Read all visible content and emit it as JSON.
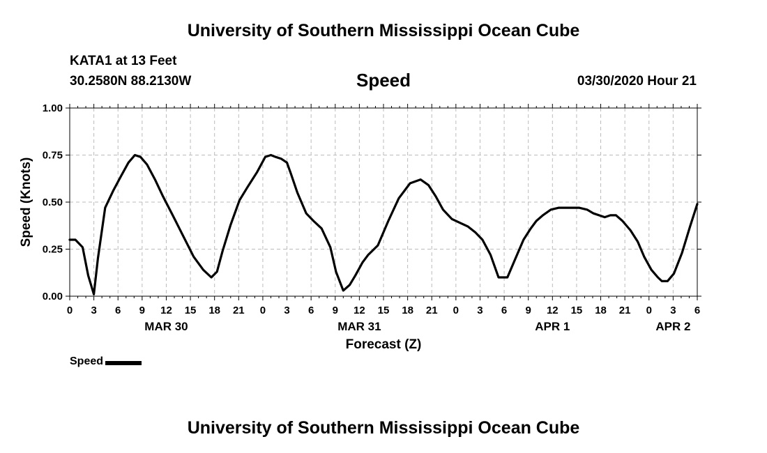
{
  "header": {
    "title_top": "University of Southern Mississippi Ocean Cube",
    "station": "KATA1 at 13 Feet",
    "coords": "30.2580N 88.2130W",
    "variable": "Speed",
    "datetime": "03/30/2020 Hour 21"
  },
  "footer": {
    "title_bottom": "University of Southern Mississippi Ocean Cube"
  },
  "legend": {
    "label": "Speed"
  },
  "chart_data": {
    "type": "line",
    "title": "Speed",
    "xlabel": "Forecast (Z)",
    "ylabel": "Speed (Knots)",
    "xlim": [
      0,
      78
    ],
    "ylim": [
      0,
      1
    ],
    "yticks": [
      0,
      0.25,
      0.5,
      0.75,
      1
    ],
    "ytick_labels": [
      "0.00",
      "0.25",
      "0.50",
      "0.75",
      "1.00"
    ],
    "xticks": [
      0,
      3,
      6,
      9,
      12,
      15,
      18,
      21,
      24,
      27,
      30,
      33,
      36,
      39,
      42,
      45,
      48,
      51,
      54,
      57,
      60,
      63,
      66,
      69,
      72,
      75,
      78
    ],
    "xtick_labels": [
      "0",
      "3",
      "6",
      "9",
      "12",
      "15",
      "18",
      "21",
      "0",
      "3",
      "6",
      "9",
      "12",
      "15",
      "18",
      "21",
      "0",
      "3",
      "6",
      "9",
      "12",
      "15",
      "18",
      "21",
      "0",
      "3",
      "6"
    ],
    "date_labels": [
      {
        "label": "MAR 30",
        "x": 12
      },
      {
        "label": "MAR 31",
        "x": 36
      },
      {
        "label": "APR 1",
        "x": 60
      },
      {
        "label": "APR 2",
        "x": 75
      }
    ],
    "grid": true,
    "legend_position": "bottom-left",
    "series": [
      {
        "name": "Speed",
        "color": "#000000",
        "x": [
          0,
          0.7,
          1.6,
          2.3,
          3,
          3.5,
          4.4,
          5.4,
          6.4,
          7.3,
          8.1,
          8.8,
          9.6,
          10.6,
          11.6,
          12.8,
          14.1,
          15.4,
          16.6,
          17.6,
          18.3,
          19,
          20,
          21.1,
          22.1,
          23.3,
          24.3,
          25,
          25.6,
          26.3,
          27,
          27.5,
          28.3,
          29.4,
          30.3,
          31.3,
          32.4,
          33.1,
          34,
          34.8,
          35.5,
          36.4,
          37.1,
          38.3,
          39.6,
          40.9,
          42.3,
          43.6,
          44.6,
          45.5,
          46.4,
          47.5,
          48.5,
          49.5,
          50.4,
          51.3,
          52.3,
          53.3,
          54.4,
          55.4,
          56.4,
          57.3,
          58,
          58.8,
          59.8,
          60.8,
          61.6,
          62.4,
          63.3,
          64.3,
          65.1,
          66.5,
          67.2,
          67.9,
          68.7,
          69.7,
          70.6,
          71.4,
          72.3,
          73.1,
          73.6,
          74.3,
          75.1,
          76.1,
          77.1,
          78
        ],
        "y": [
          0.3,
          0.3,
          0.26,
          0.11,
          0.01,
          0.2,
          0.47,
          0.56,
          0.64,
          0.71,
          0.75,
          0.74,
          0.7,
          0.62,
          0.53,
          0.43,
          0.32,
          0.21,
          0.14,
          0.1,
          0.13,
          0.24,
          0.38,
          0.51,
          0.58,
          0.66,
          0.74,
          0.75,
          0.74,
          0.73,
          0.71,
          0.65,
          0.55,
          0.44,
          0.4,
          0.36,
          0.26,
          0.13,
          0.03,
          0.06,
          0.11,
          0.18,
          0.22,
          0.27,
          0.4,
          0.52,
          0.6,
          0.62,
          0.59,
          0.53,
          0.46,
          0.41,
          0.39,
          0.37,
          0.34,
          0.3,
          0.22,
          0.1,
          0.1,
          0.2,
          0.3,
          0.36,
          0.4,
          0.43,
          0.46,
          0.47,
          0.47,
          0.47,
          0.47,
          0.46,
          0.44,
          0.42,
          0.43,
          0.43,
          0.4,
          0.35,
          0.29,
          0.21,
          0.14,
          0.1,
          0.08,
          0.08,
          0.12,
          0.23,
          0.37,
          0.49
        ]
      }
    ]
  }
}
